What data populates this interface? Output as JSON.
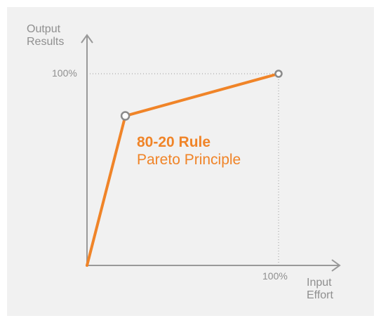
{
  "chart_data": {
    "type": "line",
    "title": "80-20 Rule",
    "subtitle": "Pareto Principle",
    "xlabel_lines": [
      "Input",
      "Effort"
    ],
    "ylabel_lines": [
      "Output",
      "Results"
    ],
    "x_ticks": [
      {
        "value": 100,
        "label": "100%"
      }
    ],
    "y_ticks": [
      {
        "value": 100,
        "label": "100%"
      }
    ],
    "xlim": [
      0,
      130
    ],
    "ylim": [
      0,
      130
    ],
    "grid": false,
    "series": [
      {
        "points": [
          {
            "x": 0,
            "y": 0
          },
          {
            "x": 20,
            "y": 78
          },
          {
            "x": 100,
            "y": 100
          }
        ]
      }
    ],
    "markers": [
      {
        "x": 20,
        "y": 78
      },
      {
        "x": 100,
        "y": 100
      }
    ],
    "colors": {
      "line": "#f08428",
      "axis": "#999999",
      "marker_stroke": "#8a8a8a",
      "guide": "#9a9a9a"
    }
  }
}
